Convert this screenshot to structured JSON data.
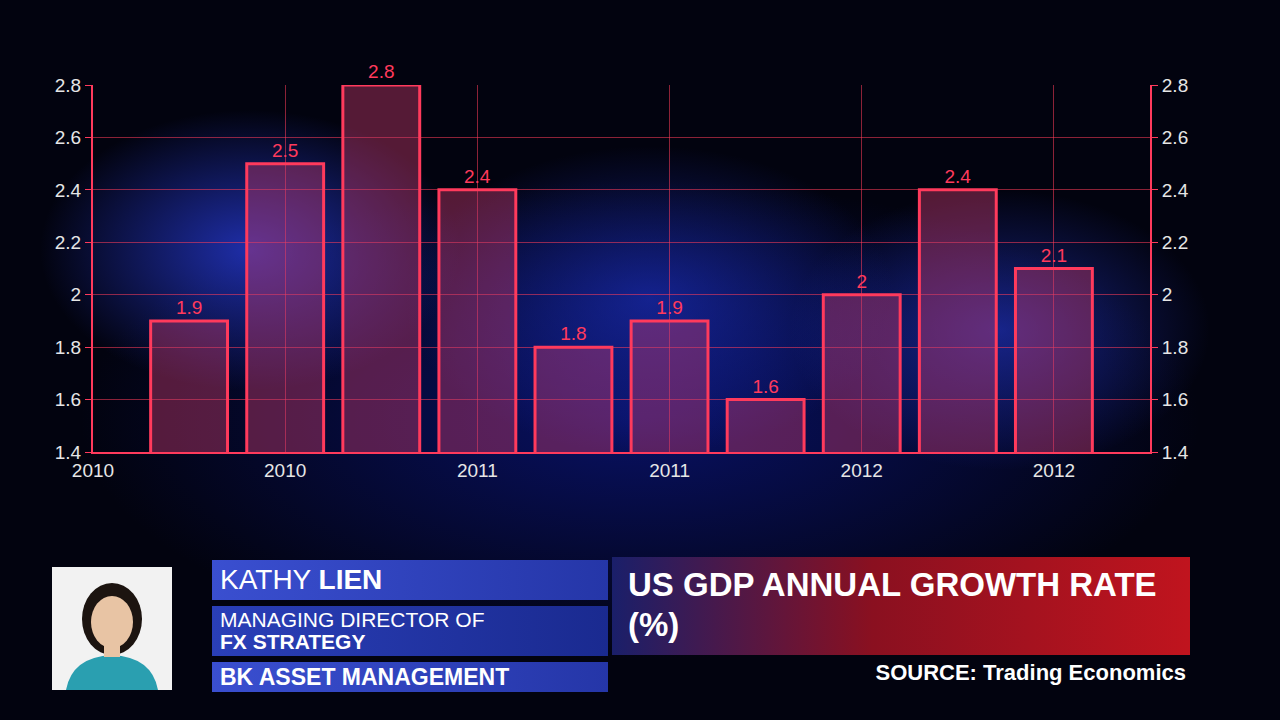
{
  "chart_data": {
    "type": "bar",
    "title": "US GDP ANNUAL GROWTH RATE (%)",
    "source": "SOURCE: Trading Economics",
    "categories": [
      "2010",
      null,
      "2010",
      null,
      "2011",
      null,
      "2011",
      null,
      "2012",
      null,
      "2012"
    ],
    "values": [
      null,
      1.9,
      2.5,
      2.8,
      2.4,
      1.8,
      1.9,
      1.6,
      2,
      2.4,
      2.1
    ],
    "color": "#ff3a5c",
    "ylim": [
      1.4,
      2.8
    ],
    "yticks": [
      1.4,
      1.6,
      1.8,
      2,
      2.2,
      2.4,
      2.6,
      2.8
    ],
    "y2lim": [
      1.4,
      2.8
    ],
    "y2ticks": [
      1.4,
      1.6,
      1.8,
      2,
      2.2,
      2.4,
      2.6,
      2.8
    ],
    "grid": true,
    "data_labels": true
  },
  "lower_third": {
    "name": "KATHY LIEN",
    "role": [
      "MANAGING DIRECTOR OF",
      "FX STRATEGY"
    ],
    "company": "BK ASSET MANAGEMENT"
  }
}
